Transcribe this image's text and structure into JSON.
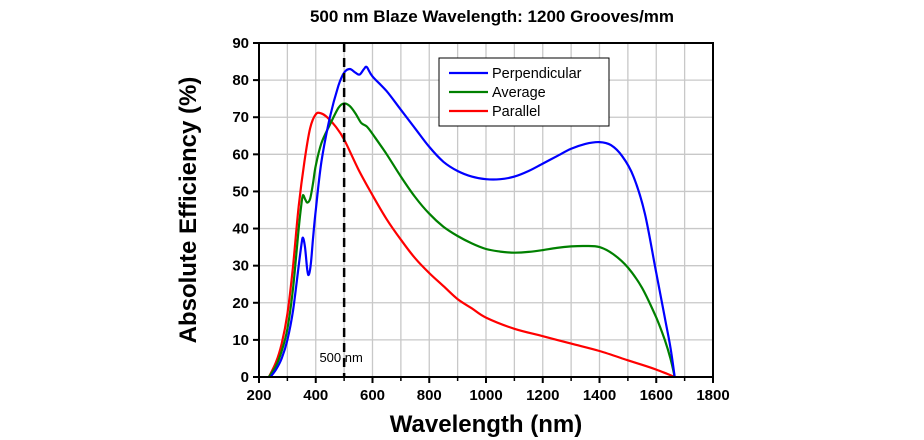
{
  "chart_data": {
    "type": "line",
    "title": "500 nm Blaze Wavelength: 1200 Grooves/mm",
    "xlabel": "Wavelength (nm)",
    "ylabel": "Absolute Efficiency (%)",
    "xlim": [
      200,
      1800
    ],
    "ylim": [
      0,
      90
    ],
    "xticks": [
      200,
      400,
      600,
      800,
      1000,
      1200,
      1400,
      1600,
      1800
    ],
    "yticks": [
      0,
      10,
      20,
      30,
      40,
      50,
      60,
      70,
      80,
      90
    ],
    "xtick_labels": [
      "200",
      "400",
      "600",
      "800",
      "1000",
      "1200",
      "1400",
      "1600",
      "1800"
    ],
    "ytick_labels": [
      "0",
      "10",
      "20",
      "30",
      "40",
      "50",
      "60",
      "70",
      "80",
      "90"
    ],
    "grid": true,
    "legend_position": "top-center",
    "annotation": {
      "x": 500,
      "label": "500 nm",
      "style": "dashed vertical line"
    },
    "series": [
      {
        "name": "Perpendicular",
        "color": "#0000ff",
        "x": [
          240,
          260,
          280,
          300,
          320,
          340,
          350,
          355,
          362,
          370,
          375,
          382,
          390,
          400,
          420,
          450,
          480,
          500,
          520,
          540,
          555,
          570,
          580,
          600,
          650,
          700,
          750,
          800,
          850,
          900,
          950,
          1000,
          1050,
          1100,
          1150,
          1200,
          1250,
          1300,
          1350,
          1400,
          1440,
          1480,
          1520,
          1560,
          1600,
          1630,
          1650,
          1665
        ],
        "y": [
          0,
          2,
          5,
          10,
          18,
          30,
          36,
          37.5,
          35,
          29,
          27.5,
          30,
          37,
          45,
          58,
          70,
          78.5,
          82,
          83,
          82,
          81.5,
          83,
          83.5,
          81,
          77,
          72,
          67,
          62,
          58,
          55.5,
          54,
          53.3,
          53.3,
          54,
          55.5,
          57.5,
          59.5,
          61.5,
          62.8,
          63.3,
          62.5,
          59.5,
          54,
          44,
          28,
          16,
          8,
          0
        ]
      },
      {
        "name": "Average",
        "color": "#008000",
        "x": [
          235,
          260,
          280,
          300,
          320,
          340,
          350,
          355,
          362,
          370,
          380,
          390,
          400,
          420,
          450,
          480,
          500,
          520,
          540,
          560,
          580,
          600,
          650,
          700,
          750,
          800,
          850,
          900,
          950,
          1000,
          1050,
          1100,
          1150,
          1200,
          1250,
          1300,
          1350,
          1400,
          1450,
          1500,
          1550,
          1600,
          1630,
          1650,
          1665
        ],
        "y": [
          0,
          3,
          7,
          13,
          24,
          40,
          47,
          49,
          48,
          47,
          48,
          52,
          57,
          63,
          68,
          72.5,
          73.7,
          73,
          71,
          68.5,
          67.5,
          65.5,
          60,
          54,
          48.5,
          44,
          40.5,
          38,
          36,
          34.5,
          33.8,
          33.5,
          33.7,
          34.2,
          34.8,
          35.2,
          35.3,
          35,
          33,
          29.5,
          24,
          16,
          10,
          5,
          0
        ]
      },
      {
        "name": "Parallel",
        "color": "#ff0000",
        "x": [
          235,
          260,
          280,
          300,
          320,
          340,
          360,
          380,
          400,
          420,
          440,
          470,
          500,
          550,
          600,
          650,
          700,
          750,
          800,
          850,
          900,
          950,
          1000,
          1100,
          1200,
          1300,
          1400,
          1500,
          1550,
          1600,
          1640,
          1665
        ],
        "y": [
          0,
          4,
          9,
          17,
          30,
          46,
          58,
          67,
          70.8,
          71,
          70,
          67.5,
          64,
          56,
          49,
          42.5,
          37,
          32,
          28,
          24.5,
          21,
          18.5,
          16,
          13,
          11,
          9,
          7,
          4.5,
          3.3,
          2,
          0.8,
          0
        ]
      }
    ]
  }
}
